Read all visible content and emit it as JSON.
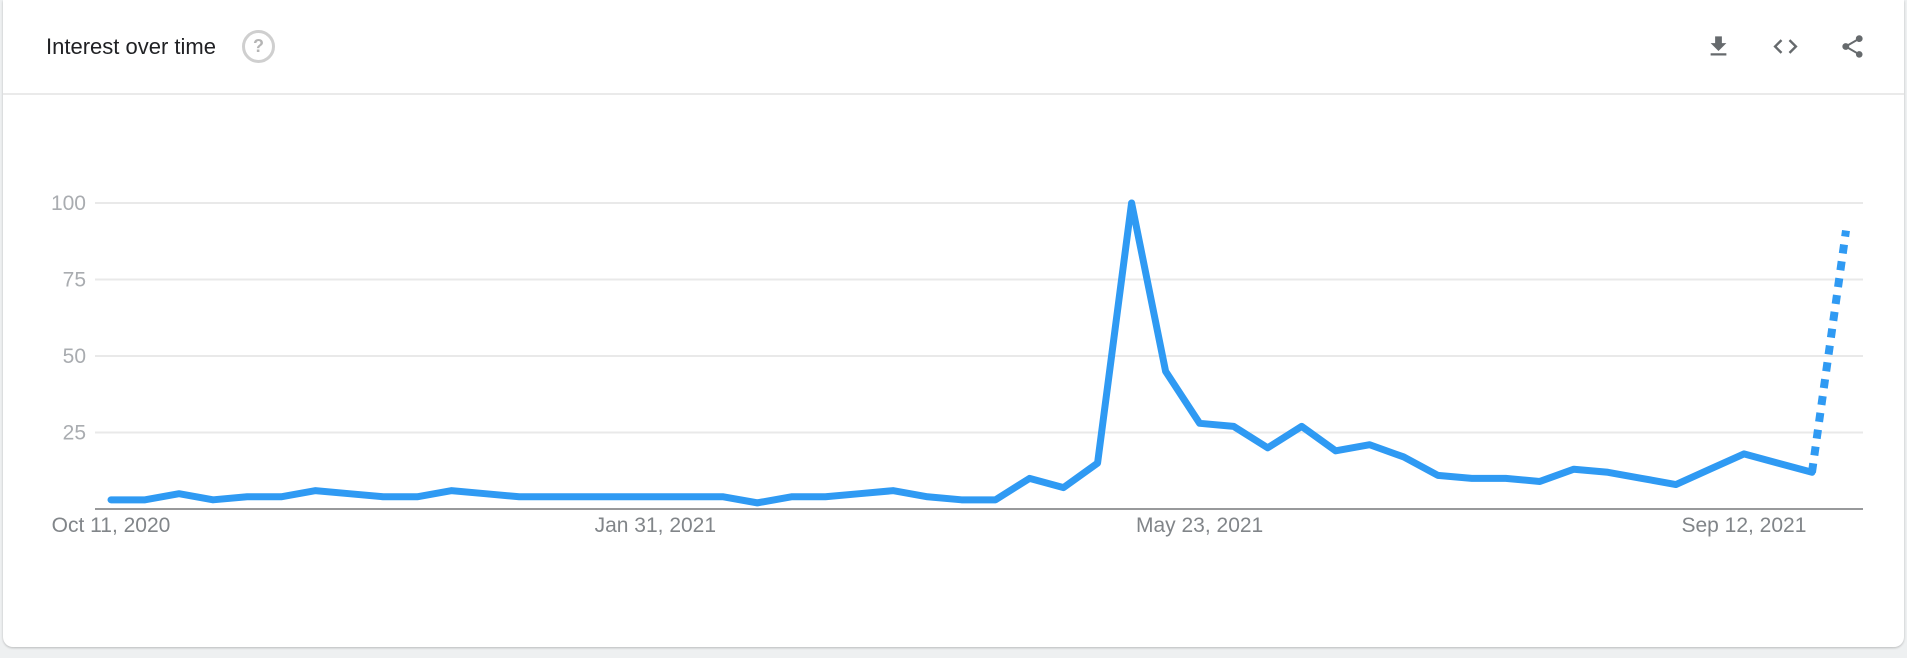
{
  "header": {
    "title": "Interest over time",
    "help_glyph": "?",
    "icons": [
      {
        "name": "download-icon",
        "action": "download"
      },
      {
        "name": "embed-icon",
        "action": "embed"
      },
      {
        "name": "share-icon",
        "action": "share"
      }
    ]
  },
  "colors": {
    "line": "#2f9af3",
    "gridline": "#e9e9e9",
    "axis_line": "#98999b",
    "y_tick_label": "#a9acb0",
    "x_tick_label": "#818589",
    "card_bg": "#ffffff",
    "page_bg": "#eef0f1"
  },
  "chart_data": {
    "type": "line",
    "title": "Interest over time",
    "xlabel": "",
    "ylabel": "",
    "x_unit": "week",
    "start_week_label": "Oct 11, 2020",
    "ylim": [
      0,
      100
    ],
    "y_ticks": [
      25,
      50,
      75,
      100
    ],
    "x_ticks": [
      {
        "label": "Oct 11, 2020",
        "week": 0
      },
      {
        "label": "Jan 31, 2021",
        "week": 16
      },
      {
        "label": "May 23, 2021",
        "week": 32
      },
      {
        "label": "Sep 12, 2021",
        "week": 48
      }
    ],
    "grid": "horizontal",
    "legend": "none",
    "series": [
      {
        "name": "interest",
        "last_point_partial_dotted": true,
        "values": [
          3,
          3,
          5,
          3,
          4,
          4,
          6,
          5,
          4,
          4,
          6,
          5,
          4,
          4,
          4,
          4,
          4,
          4,
          4,
          2,
          4,
          4,
          5,
          6,
          4,
          3,
          3,
          10,
          7,
          15,
          100,
          45,
          28,
          27,
          20,
          27,
          19,
          21,
          17,
          11,
          10,
          10,
          9,
          13,
          12,
          10,
          8,
          13,
          18,
          15,
          12,
          91
        ]
      }
    ]
  }
}
